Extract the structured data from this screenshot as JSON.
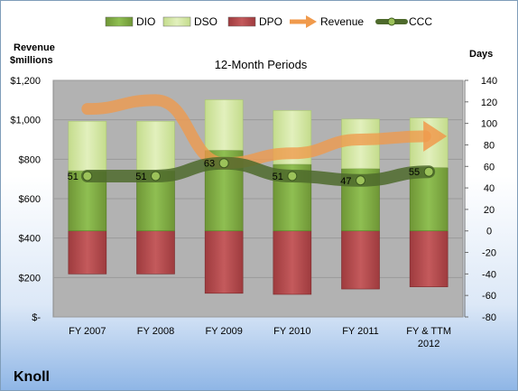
{
  "chart_data": {
    "type": "bar",
    "title": "12-Month Periods",
    "company": "Knoll",
    "left_axis_label": [
      "Revenue",
      "$millions"
    ],
    "right_axis_label": "Days",
    "categories": [
      "FY 2007",
      "FY 2008",
      "FY 2009",
      "FY 2010",
      "FY 2011",
      "FY & TTM 2012"
    ],
    "category_lines": [
      [
        "FY 2007"
      ],
      [
        "FY 2008"
      ],
      [
        "FY 2009"
      ],
      [
        "FY 2010"
      ],
      [
        "FY 2011"
      ],
      [
        "FY & TTM",
        "2012"
      ]
    ],
    "left_axis": {
      "min": 0,
      "max": 1200,
      "step": 200,
      "tick_labels": [
        "$-",
        "$200",
        "$400",
        "$600",
        "$800",
        "$1,000",
        "$1,200"
      ]
    },
    "right_axis": {
      "min": -80,
      "max": 140,
      "step": 20,
      "tick_labels": [
        "-80",
        "-60",
        "-40",
        "-20",
        "0",
        "20",
        "40",
        "60",
        "80",
        "100",
        "120",
        "140"
      ]
    },
    "legend": [
      {
        "name": "DIO",
        "kind": "bar",
        "color": "#7ea644"
      },
      {
        "name": "DSO",
        "kind": "bar",
        "color": "#d3e6a4"
      },
      {
        "name": "DPO",
        "kind": "bar",
        "color": "#b0474a"
      },
      {
        "name": "Revenue",
        "kind": "arrow",
        "color": "#f09a4c"
      },
      {
        "name": "CCC",
        "kind": "line",
        "color": "#4e6a2c"
      }
    ],
    "series": [
      {
        "name": "DIO",
        "axis": "days",
        "values": [
          56,
          56,
          75,
          62,
          58,
          59
        ]
      },
      {
        "name": "DSO",
        "axis": "days",
        "values": [
          46,
          46,
          47,
          50,
          46,
          46
        ]
      },
      {
        "name": "DPO",
        "axis": "days",
        "values": [
          -40,
          -40,
          -58,
          -59,
          -54,
          -52
        ]
      },
      {
        "name": "Revenue",
        "axis": "revenue",
        "values": [
          1055,
          1100,
          780,
          830,
          900,
          880
        ]
      },
      {
        "name": "CCC",
        "axis": "days",
        "values": [
          51,
          51,
          63,
          51,
          47,
          55
        ],
        "data_labels": [
          "51",
          "51",
          "63",
          "51",
          "47",
          "55"
        ]
      }
    ],
    "grid": true,
    "legend_position": "top"
  }
}
